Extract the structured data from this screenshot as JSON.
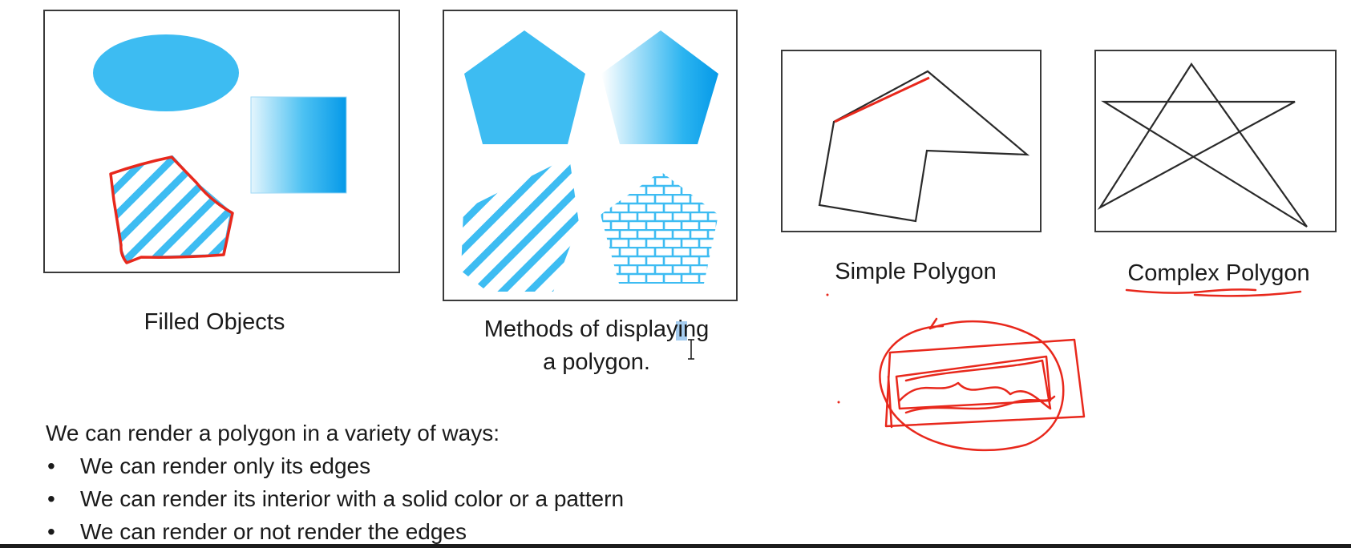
{
  "captions": {
    "filled_objects": "Filled Objects",
    "methods_line1": "Methods of displaying",
    "methods_line2": "a polygon.",
    "simple_polygon": "Simple Polygon",
    "complex_polygon": "Complex Polygon"
  },
  "text": {
    "intro": "We can render a polygon in a variety of ways:",
    "bullets": [
      "We can render only its edges",
      "We can render its interior with a solid color or a pattern",
      "We can render or not render the edges"
    ]
  },
  "colors": {
    "fill_blue": "#3dbcf2",
    "deep_blue": "#0599e8",
    "annotation_red": "#e8281c",
    "outline": "#3a3a3a"
  }
}
